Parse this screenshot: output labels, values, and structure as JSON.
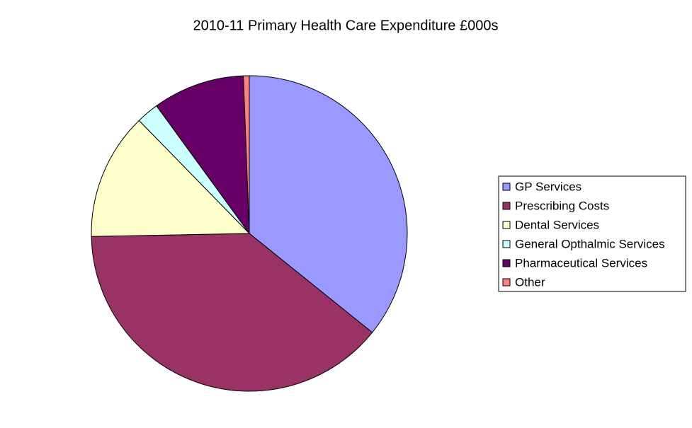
{
  "chart_data": {
    "type": "pie",
    "title": "2010-11 Primary Health Care Expenditure £000s",
    "categories": [
      "GP Services",
      "Prescribing Costs",
      "Dental Services",
      "General Opthalmic Services",
      "Pharmaceutical Services",
      "Other"
    ],
    "values": [
      35.8,
      38.9,
      13.0,
      2.3,
      9.4,
      0.6
    ],
    "colors": [
      "#9999ff",
      "#993366",
      "#ffffcc",
      "#ccffff",
      "#660066",
      "#ff8080"
    ],
    "legend": "right"
  }
}
